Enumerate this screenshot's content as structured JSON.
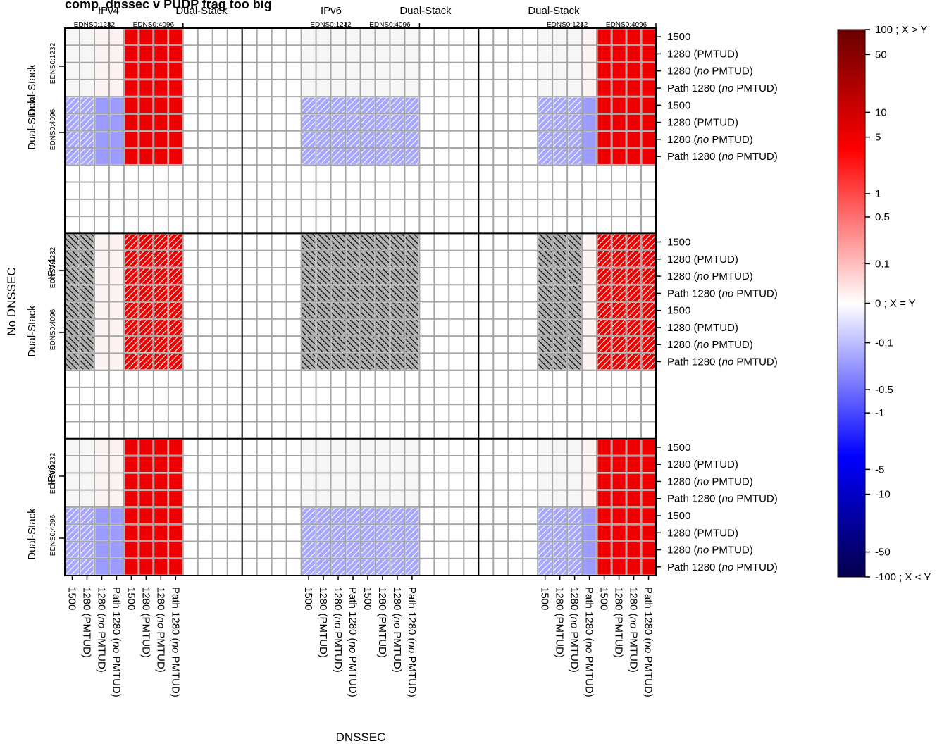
{
  "chart_data": {
    "type": "heatmap",
    "title": "comp_dnssec v PUDP frag too big",
    "xlabel": "DNSSEC",
    "ylabel": "No DNSSEC",
    "col_groups": [
      "IPv4",
      "Dual-Stack",
      "IPv6",
      "Dual-Stack",
      "Dual-Stack"
    ],
    "col_edns": [
      "EDNS0:1232",
      "EDNS0:4096",
      "EDNS0:1232",
      "EDNS0:4096",
      "EDNS0:1232",
      "EDNS0:4096"
    ],
    "row_groups": [
      {
        "outer": "Dual-Stack",
        "inner": "EDNS0:1232"
      },
      {
        "outer": "Dual-Stack",
        "inner": "EDNS0:4096"
      },
      {
        "outer": "IPv4",
        "inner": "EDNS0:1232"
      },
      {
        "outer": "Dual-Stack",
        "inner": "EDNS0:4096"
      },
      {
        "outer": "IPv6",
        "inner": "EDNS0:1232"
      },
      {
        "outer": "Dual-Stack",
        "inner": "EDNS0:4096"
      }
    ],
    "block_labels": [
      "1500",
      "1280 (PMTUD)",
      "1280 (no PMTUD)",
      "Path 1280 (no PMTUD)"
    ],
    "block_labels_italic_word": "no",
    "colorbar": {
      "min_label": "-100 ; X < Y",
      "mid_label": "0 ; X = Y",
      "max_label": "100 ; X > Y",
      "ticks": [
        "50",
        "10",
        "5",
        "1",
        "0.5",
        "0.1",
        "-0.1",
        "-0.5",
        "-1",
        "-5",
        "-10",
        "-50"
      ],
      "tick_values": [
        50,
        10,
        5,
        1,
        0.5,
        0.1,
        -0.1,
        -0.5,
        -1,
        -5,
        -10,
        -50
      ],
      "colors": [
        "#05004a",
        "#0000ff",
        "#ffffff",
        "#ff0000",
        "#6a0000"
      ]
    },
    "cell_styles": {
      "F": "faint",
      "P": "faint pink",
      "B": "blue, hatched",
      "L": "blue, solid",
      "R": "red",
      "D": "red, hatched",
      "G": "grey, hatched",
      "E": "empty"
    },
    "grid": [
      [
        "FFPP",
        "RRRR",
        "EEEE",
        "EEEE",
        "FFFF",
        "FFFF",
        "EEEE",
        "EEEE",
        "FFFP",
        "RRRR"
      ],
      [
        "FFPP",
        "RRRR",
        "EEEE",
        "EEEE",
        "FFFF",
        "FFFF",
        "EEEE",
        "EEEE",
        "FFFP",
        "RRRR"
      ],
      [
        "FFPP",
        "RRRR",
        "EEEE",
        "EEEE",
        "FFFF",
        "FFFF",
        "EEEE",
        "EEEE",
        "FFFP",
        "RRRR"
      ],
      [
        "FFPP",
        "RRRR",
        "EEEE",
        "EEEE",
        "FFFF",
        "FFFF",
        "EEEE",
        "EEEE",
        "FFFP",
        "RRRR"
      ],
      [
        "BBLL",
        "RRRR",
        "EEEE",
        "EEEE",
        "BBBB",
        "BBBB",
        "EEEE",
        "EEEE",
        "BBBL",
        "RRRR"
      ],
      [
        "BBLL",
        "RRRR",
        "EEEE",
        "EEEE",
        "BBBB",
        "BBBB",
        "EEEE",
        "EEEE",
        "BBBL",
        "RRRR"
      ],
      [
        "BBLL",
        "RRRR",
        "EEEE",
        "EEEE",
        "BBBB",
        "BBBB",
        "EEEE",
        "EEEE",
        "BBBL",
        "RRRR"
      ],
      [
        "BBLL",
        "RRRR",
        "EEEE",
        "EEEE",
        "BBBB",
        "BBBB",
        "EEEE",
        "EEEE",
        "BBBL",
        "RRRR"
      ],
      [
        "EEEE",
        "EEEE",
        "EEEE",
        "EEEE",
        "EEEE",
        "EEEE",
        "EEEE",
        "EEEE",
        "EEEE",
        "EEEE"
      ],
      [
        "EEEE",
        "EEEE",
        "EEEE",
        "EEEE",
        "EEEE",
        "EEEE",
        "EEEE",
        "EEEE",
        "EEEE",
        "EEEE"
      ],
      [
        "EEEE",
        "EEEE",
        "EEEE",
        "EEEE",
        "EEEE",
        "EEEE",
        "EEEE",
        "EEEE",
        "EEEE",
        "EEEE"
      ],
      [
        "EEEE",
        "EEEE",
        "EEEE",
        "EEEE",
        "EEEE",
        "EEEE",
        "EEEE",
        "EEEE",
        "EEEE",
        "EEEE"
      ],
      [
        "GGPP",
        "DDDD",
        "EEEE",
        "EEEE",
        "GGGG",
        "GGGG",
        "EEEE",
        "EEEE",
        "GGGP",
        "DDDD"
      ],
      [
        "GGPP",
        "DDDD",
        "EEEE",
        "EEEE",
        "GGGG",
        "GGGG",
        "EEEE",
        "EEEE",
        "GGGP",
        "DDDD"
      ],
      [
        "GGPP",
        "DDDD",
        "EEEE",
        "EEEE",
        "GGGG",
        "GGGG",
        "EEEE",
        "EEEE",
        "GGGP",
        "DDDD"
      ],
      [
        "GGPP",
        "DDDD",
        "EEEE",
        "EEEE",
        "GGGG",
        "GGGG",
        "EEEE",
        "EEEE",
        "GGGP",
        "DDDD"
      ],
      [
        "GGPP",
        "DDDD",
        "EEEE",
        "EEEE",
        "GGGG",
        "GGGG",
        "EEEE",
        "EEEE",
        "GGGP",
        "DDDD"
      ],
      [
        "GGPP",
        "DDDD",
        "EEEE",
        "EEEE",
        "GGGG",
        "GGGG",
        "EEEE",
        "EEEE",
        "GGGP",
        "DDDD"
      ],
      [
        "GGPP",
        "DDDD",
        "EEEE",
        "EEEE",
        "GGGG",
        "GGGG",
        "EEEE",
        "EEEE",
        "GGGP",
        "DDDD"
      ],
      [
        "GGPP",
        "DDDD",
        "EEEE",
        "EEEE",
        "GGGG",
        "GGGG",
        "EEEE",
        "EEEE",
        "GGGP",
        "DDDD"
      ],
      [
        "EEEE",
        "EEEE",
        "EEEE",
        "EEEE",
        "EEEE",
        "EEEE",
        "EEEE",
        "EEEE",
        "EEEE",
        "EEEE"
      ],
      [
        "EEEE",
        "EEEE",
        "EEEE",
        "EEEE",
        "EEEE",
        "EEEE",
        "EEEE",
        "EEEE",
        "EEEE",
        "EEEE"
      ],
      [
        "EEEE",
        "EEEE",
        "EEEE",
        "EEEE",
        "EEEE",
        "EEEE",
        "EEEE",
        "EEEE",
        "EEEE",
        "EEEE"
      ],
      [
        "EEEE",
        "EEEE",
        "EEEE",
        "EEEE",
        "EEEE",
        "EEEE",
        "EEEE",
        "EEEE",
        "EEEE",
        "EEEE"
      ],
      [
        "FFPP",
        "RRRR",
        "EEEE",
        "EEEE",
        "FFFF",
        "FFFF",
        "EEEE",
        "EEEE",
        "FFFP",
        "RRRR"
      ],
      [
        "FFPP",
        "RRRR",
        "EEEE",
        "EEEE",
        "FFFF",
        "FFFF",
        "EEEE",
        "EEEE",
        "FFFP",
        "RRRR"
      ],
      [
        "FFPP",
        "RRRR",
        "EEEE",
        "EEEE",
        "FFFF",
        "FFFF",
        "EEEE",
        "EEEE",
        "FFFP",
        "RRRR"
      ],
      [
        "FFPP",
        "RRRR",
        "EEEE",
        "EEEE",
        "FFFF",
        "FFFF",
        "EEEE",
        "EEEE",
        "FFFP",
        "RRRR"
      ],
      [
        "BBLL",
        "RRRR",
        "EEEE",
        "EEEE",
        "BBBB",
        "BBBB",
        "EEEE",
        "EEEE",
        "BBBL",
        "RRRR"
      ],
      [
        "BBLL",
        "RRRR",
        "EEEE",
        "EEEE",
        "BBBB",
        "BBBB",
        "EEEE",
        "EEEE",
        "BBBL",
        "RRRR"
      ],
      [
        "BBLL",
        "RRRR",
        "EEEE",
        "EEEE",
        "BBBB",
        "BBBB",
        "EEEE",
        "EEEE",
        "BBBL",
        "RRRR"
      ],
      [
        "BBLL",
        "RRRR",
        "EEEE",
        "EEEE",
        "BBBB",
        "BBBB",
        "EEEE",
        "EEEE",
        "BBBL",
        "RRRR"
      ]
    ]
  }
}
